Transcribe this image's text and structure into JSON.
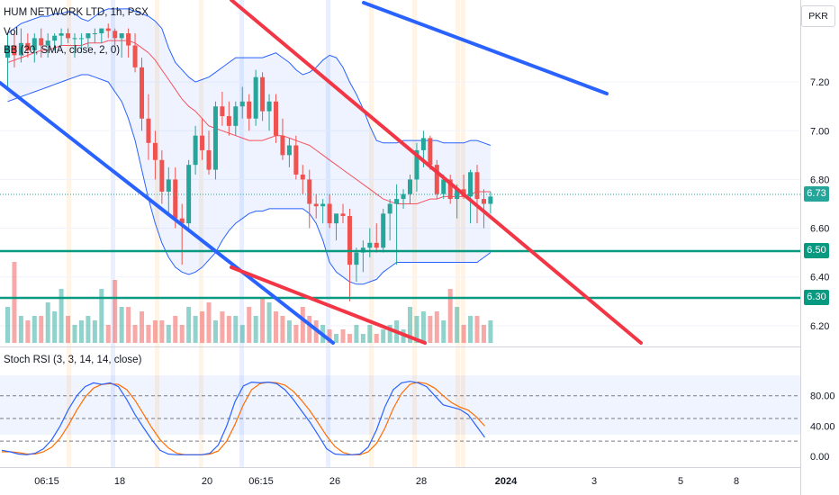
{
  "legend": {
    "symbol": "HUM NETWORK LTD, 1h, PSX",
    "volume": "Vol",
    "bollinger": "BB (20, SMA, close, 2, 0)",
    "stoch": "Stoch RSI (3, 3, 14, 14, close)"
  },
  "currency": "PKR",
  "badges": {
    "last": "6.73",
    "level1": "6.50",
    "level2": "6.30"
  },
  "colors": {
    "up": "#26a69a",
    "down": "#ef5350",
    "bb_band": "#2962ff",
    "bb_basis": "#f7525f",
    "trend_blue": "#2962ff",
    "trend_red": "#f23645",
    "level": "#089981",
    "stoch_k": "#2962ff",
    "stoch_d": "#ff6d00"
  },
  "chart_data": [
    {
      "type": "candlestick",
      "title": "HUM NETWORK LTD, 1h, PSX",
      "ylim": [
        6.1,
        7.4
      ],
      "y_ticks": [
        "7.20",
        "7.00",
        "6.80",
        "6.60",
        "6.40",
        "6.20"
      ],
      "x_ticks": [
        "06:15",
        "18",
        "20",
        "06:15",
        "26",
        "28",
        "2024",
        "3",
        "5",
        "8"
      ],
      "last_price": 6.73,
      "horizontal_levels": [
        6.5,
        6.3
      ],
      "candles": [
        [
          7.3,
          7.4,
          7.18,
          7.35
        ],
        [
          7.35,
          7.4,
          7.26,
          7.31
        ],
        [
          7.31,
          7.42,
          7.28,
          7.36
        ],
        [
          7.36,
          7.4,
          7.3,
          7.33
        ],
        [
          7.33,
          7.4,
          7.28,
          7.38
        ],
        [
          7.38,
          7.42,
          7.3,
          7.35
        ],
        [
          7.35,
          7.4,
          7.3,
          7.37
        ],
        [
          7.37,
          7.4,
          7.33,
          7.39
        ],
        [
          7.39,
          7.42,
          7.35,
          7.4
        ],
        [
          7.4,
          7.42,
          7.36,
          7.38
        ],
        [
          7.38,
          7.4,
          7.3,
          7.38
        ],
        [
          7.38,
          7.4,
          7.32,
          7.38
        ],
        [
          7.38,
          7.4,
          7.34,
          7.4
        ],
        [
          7.4,
          7.42,
          7.36,
          7.4
        ],
        [
          7.4,
          7.42,
          7.36,
          7.42
        ],
        [
          7.42,
          7.44,
          7.38,
          7.41
        ],
        [
          7.41,
          7.42,
          7.35,
          7.38
        ],
        [
          7.38,
          7.4,
          7.3,
          7.4
        ],
        [
          7.4,
          7.42,
          7.3,
          7.35
        ],
        [
          7.35,
          7.4,
          7.24,
          7.26
        ],
        [
          7.26,
          7.3,
          7.0,
          7.05
        ],
        [
          7.05,
          7.15,
          6.88,
          6.95
        ],
        [
          6.95,
          7.0,
          6.8,
          6.88
        ],
        [
          6.88,
          6.92,
          6.7,
          6.75
        ],
        [
          6.75,
          6.85,
          6.65,
          6.8
        ],
        [
          6.8,
          6.85,
          6.6,
          6.64
        ],
        [
          6.64,
          6.7,
          6.45,
          6.62
        ],
        [
          6.62,
          6.88,
          6.6,
          6.86
        ],
        [
          6.86,
          7.02,
          6.82,
          6.98
        ],
        [
          6.98,
          7.05,
          6.88,
          6.92
        ],
        [
          6.92,
          7.0,
          6.82,
          6.84
        ],
        [
          6.84,
          7.12,
          6.8,
          7.1
        ],
        [
          7.1,
          7.16,
          7.02,
          7.06
        ],
        [
          7.06,
          7.12,
          6.98,
          7.02
        ],
        [
          7.02,
          7.12,
          6.98,
          7.1
        ],
        [
          7.1,
          7.18,
          7.05,
          7.12
        ],
        [
          7.12,
          7.15,
          7.0,
          7.05
        ],
        [
          7.05,
          7.25,
          7.02,
          7.22
        ],
        [
          7.22,
          7.24,
          7.04,
          7.08
        ],
        [
          7.08,
          7.15,
          7.0,
          7.12
        ],
        [
          7.12,
          7.15,
          6.95,
          6.98
        ],
        [
          6.98,
          7.05,
          6.88,
          6.9
        ],
        [
          6.9,
          6.97,
          6.85,
          6.94
        ],
        [
          6.94,
          6.98,
          6.8,
          6.82
        ],
        [
          6.82,
          6.86,
          6.74,
          6.8
        ],
        [
          6.8,
          6.84,
          6.6,
          6.7
        ],
        [
          6.7,
          6.74,
          6.64,
          6.69
        ],
        [
          6.69,
          6.72,
          6.62,
          6.7
        ],
        [
          6.7,
          6.74,
          6.6,
          6.62
        ],
        [
          6.62,
          6.66,
          6.55,
          6.66
        ],
        [
          6.66,
          6.7,
          6.62,
          6.65
        ],
        [
          6.65,
          6.68,
          6.3,
          6.45
        ],
        [
          6.45,
          6.52,
          6.38,
          6.5
        ],
        [
          6.5,
          6.55,
          6.42,
          6.52
        ],
        [
          6.52,
          6.6,
          6.48,
          6.54
        ],
        [
          6.54,
          6.62,
          6.5,
          6.52
        ],
        [
          6.52,
          6.68,
          6.5,
          6.66
        ],
        [
          6.66,
          6.72,
          6.55,
          6.7
        ],
        [
          6.7,
          6.78,
          6.45,
          6.72
        ],
        [
          6.72,
          6.76,
          6.68,
          6.74
        ],
        [
          6.74,
          6.82,
          6.7,
          6.8
        ],
        [
          6.8,
          6.95,
          6.75,
          6.92
        ],
        [
          6.92,
          7.0,
          6.85,
          6.97
        ],
        [
          6.97,
          6.98,
          6.84,
          6.86
        ],
        [
          6.86,
          6.88,
          6.72,
          6.74
        ],
        [
          6.74,
          6.82,
          6.72,
          6.8
        ],
        [
          6.8,
          6.82,
          6.7,
          6.72
        ],
        [
          6.72,
          6.78,
          6.64,
          6.76
        ],
        [
          6.76,
          6.82,
          6.72,
          6.73
        ],
        [
          6.73,
          6.84,
          6.62,
          6.83
        ],
        [
          6.83,
          6.86,
          6.62,
          6.72
        ],
        [
          6.72,
          6.76,
          6.6,
          6.7
        ],
        [
          6.7,
          6.75,
          6.66,
          6.73
        ]
      ],
      "bollinger_upper": [
        7.4,
        7.42,
        7.44,
        7.45,
        7.46,
        7.47,
        7.47,
        7.48,
        7.48,
        7.49,
        7.48,
        7.46,
        7.45,
        7.47,
        7.49,
        7.5,
        7.5,
        7.5,
        7.5,
        7.49,
        7.48,
        7.47,
        7.45,
        7.42,
        7.34,
        7.28,
        7.25,
        7.22,
        7.2,
        7.21,
        7.22,
        7.24,
        7.26,
        7.28,
        7.3,
        7.3,
        7.3,
        7.3,
        7.3,
        7.31,
        7.32,
        7.3,
        7.28,
        7.25,
        7.23,
        7.24,
        7.26,
        7.29,
        7.31,
        7.3,
        7.26,
        7.2,
        7.15,
        7.09,
        7.02,
        6.96,
        6.95,
        6.95,
        6.95,
        6.96,
        6.96,
        6.96,
        6.96,
        6.96,
        6.96,
        6.95,
        6.95,
        6.95,
        6.95,
        6.96,
        6.96,
        6.95,
        6.94
      ],
      "bollinger_basis": [
        7.28,
        7.29,
        7.3,
        7.31,
        7.32,
        7.33,
        7.33,
        7.34,
        7.35,
        7.35,
        7.35,
        7.35,
        7.36,
        7.36,
        7.36,
        7.37,
        7.37,
        7.37,
        7.37,
        7.36,
        7.34,
        7.32,
        7.29,
        7.25,
        7.21,
        7.17,
        7.13,
        7.1,
        7.08,
        7.05,
        7.02,
        7.01,
        7.0,
        6.99,
        6.98,
        6.97,
        6.96,
        6.96,
        6.96,
        6.97,
        6.98,
        6.98,
        6.97,
        6.96,
        6.95,
        6.94,
        6.92,
        6.9,
        6.88,
        6.86,
        6.84,
        6.82,
        6.8,
        6.78,
        6.76,
        6.74,
        6.72,
        6.71,
        6.7,
        6.7,
        6.7,
        6.7,
        6.71,
        6.72,
        6.72,
        6.73,
        6.73,
        6.73,
        6.73,
        6.74,
        6.75,
        6.75,
        6.75
      ],
      "bollinger_lower": [
        7.12,
        7.13,
        7.14,
        7.15,
        7.16,
        7.17,
        7.18,
        7.19,
        7.2,
        7.21,
        7.22,
        7.23,
        7.23,
        7.22,
        7.21,
        7.2,
        7.16,
        7.12,
        7.05,
        6.96,
        6.84,
        6.72,
        6.62,
        6.54,
        6.48,
        6.44,
        6.42,
        6.41,
        6.42,
        6.44,
        6.47,
        6.5,
        6.55,
        6.59,
        6.62,
        6.64,
        6.66,
        6.67,
        6.67,
        6.68,
        6.68,
        6.68,
        6.68,
        6.68,
        6.68,
        6.66,
        6.62,
        6.55,
        6.46,
        6.42,
        6.4,
        6.38,
        6.37,
        6.37,
        6.38,
        6.39,
        6.42,
        6.44,
        6.46,
        6.46,
        6.46,
        6.46,
        6.46,
        6.46,
        6.46,
        6.46,
        6.46,
        6.46,
        6.46,
        6.46,
        6.46,
        6.48,
        6.5
      ],
      "volume": [
        0.4,
        0.9,
        0.3,
        0.25,
        0.3,
        0.3,
        0.45,
        0.35,
        0.6,
        0.3,
        0.2,
        0.25,
        0.3,
        0.25,
        0.6,
        0.2,
        0.7,
        0.4,
        0.4,
        0.2,
        0.35,
        0.2,
        0.25,
        0.25,
        0.2,
        0.3,
        0.2,
        0.4,
        0.3,
        0.35,
        0.45,
        0.25,
        0.35,
        0.3,
        0.3,
        0.2,
        0.4,
        0.3,
        0.5,
        0.45,
        0.35,
        0.3,
        0.25,
        0.2,
        0.4,
        0.3,
        0.25,
        0.2,
        0.15,
        0.1,
        0.15,
        0.1,
        0.2,
        0.1,
        0.2,
        0.1,
        0.15,
        0.2,
        0.25,
        0.15,
        0.4,
        0.3,
        0.35,
        0.3,
        0.35,
        0.25,
        0.6,
        0.4,
        0.2,
        0.3,
        0.3,
        0.2,
        0.25
      ]
    },
    {
      "type": "line",
      "title": "Stoch RSI (3, 3, 14, 14, close)",
      "ylim": [
        0,
        100
      ],
      "y_ticks": [
        "80.00",
        "40.00",
        "0.00"
      ],
      "levels": [
        80,
        50,
        20
      ],
      "series": [
        {
          "name": "K",
          "values": [
            8,
            6,
            3,
            2,
            4,
            10,
            22,
            40,
            62,
            80,
            92,
            97,
            95,
            97,
            92,
            75,
            55,
            38,
            22,
            8,
            3,
            2,
            2,
            2,
            2,
            4,
            15,
            40,
            72,
            93,
            98,
            97,
            98,
            96,
            88,
            75,
            60,
            45,
            28,
            10,
            3,
            2,
            2,
            3,
            12,
            35,
            65,
            88,
            97,
            99,
            97,
            92,
            80,
            68,
            65,
            62,
            55,
            40,
            25
          ]
        },
        {
          "name": "D",
          "values": [
            6,
            6,
            5,
            3,
            3,
            6,
            12,
            24,
            41,
            61,
            78,
            90,
            95,
            96,
            95,
            88,
            74,
            56,
            38,
            22,
            11,
            4,
            2,
            2,
            2,
            3,
            7,
            20,
            42,
            68,
            88,
            96,
            98,
            97,
            94,
            86,
            74,
            60,
            44,
            27,
            13,
            5,
            2,
            2,
            6,
            17,
            37,
            63,
            83,
            95,
            98,
            96,
            90,
            80,
            71,
            65,
            61,
            52,
            40
          ]
        }
      ]
    }
  ]
}
